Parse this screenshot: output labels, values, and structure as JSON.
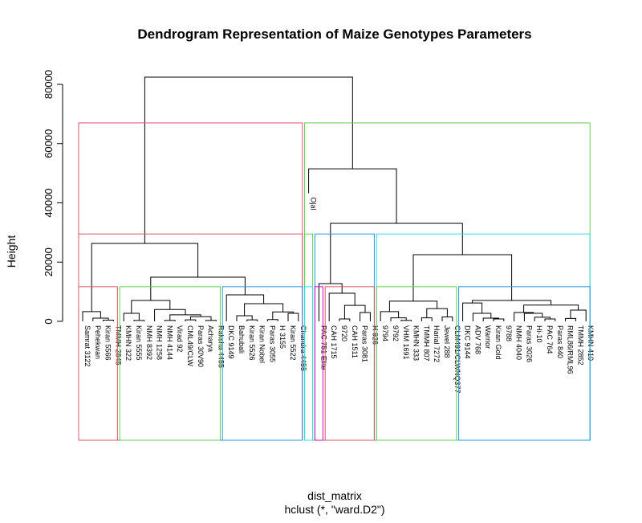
{
  "chart_data": {
    "type": "dendrogram",
    "title": "Dendrogram Representation of Maize Genotypes Parameters",
    "x_label": "dist_matrix",
    "x_sublabel": "hclust (*, \"ward.D2\")",
    "y_label": "Height",
    "ylim": [
      0,
      88000
    ],
    "yticks": [
      0,
      20000,
      40000,
      60000,
      80000
    ],
    "labels": [
      "Samrat 3122",
      "Pehekwan",
      "Kiran 5566",
      "TMMH 2845",
      "KMHN 322",
      "Kiran 5555",
      "NMH 8392",
      "NMH 1258",
      "NMH 4144",
      "Virad 92",
      "CML49/CLW",
      "Paras 30V90",
      "Acharya",
      "Raksha 4455",
      "DKC 9149",
      "Bahubali",
      "Kiran 5526",
      "Kiran Nobel",
      "Paras 3055",
      "H 3155",
      "Kiran 5522",
      "Chandra 4455",
      "Ojal",
      "PAC 751 Elite",
      "CAH 1715",
      "9720",
      "CAH 1511",
      "Paras 3081",
      "H 926",
      "9794",
      "9792",
      "VHM 1691",
      "KMHN 333",
      "TMMH 807",
      "Harial 7272",
      "Jewel 288",
      "CLM491/CLWNQ377",
      "DKC 9144",
      "ADV 768",
      "Warrior",
      "Kiran Gold",
      "9788",
      "NMH 4040",
      "Paras 3026",
      "Hi-10",
      "PAC 764",
      "Paras 840",
      "RML86/RML96",
      "TMMH 2852",
      "KMHN 410"
    ],
    "merges": [
      {
        "pair": [
          -3,
          -4
        ],
        "height": 400
      },
      {
        "pair": [
          -2,
          1
        ],
        "height": 1100
      },
      {
        "pair": [
          -1,
          2
        ],
        "height": 3300
      },
      {
        "pair": [
          -6,
          -7
        ],
        "height": 300
      },
      {
        "pair": [
          -5,
          4
        ],
        "height": 2700
      },
      {
        "pair": [
          -9,
          -10
        ],
        "height": 300
      },
      {
        "pair": [
          -11,
          -12
        ],
        "height": 500
      },
      {
        "pair": [
          -13,
          -14
        ],
        "height": 300
      },
      {
        "pair": [
          7,
          8
        ],
        "height": 1600
      },
      {
        "pair": [
          6,
          9
        ],
        "height": 2200
      },
      {
        "pair": [
          -8,
          10
        ],
        "height": 4000
      },
      {
        "pair": [
          5,
          11
        ],
        "height": 7050
      },
      {
        "pair": [
          -17,
          -18
        ],
        "height": 500
      },
      {
        "pair": [
          -16,
          13
        ],
        "height": 1900
      },
      {
        "pair": [
          -19,
          -20
        ],
        "height": 600
      },
      {
        "pair": [
          -21,
          -22
        ],
        "height": 2700
      },
      {
        "pair": [
          15,
          16
        ],
        "height": 3200
      },
      {
        "pair": [
          14,
          17
        ],
        "height": 5970
      },
      {
        "pair": [
          -15,
          18
        ],
        "height": 8950
      },
      {
        "pair": [
          12,
          19
        ],
        "height": 14900
      },
      {
        "pair": [
          3,
          20
        ],
        "height": 26300
      },
      {
        "pair": [
          -26,
          -27
        ],
        "height": 800
      },
      {
        "pair": [
          -28,
          -29
        ],
        "height": 3000
      },
      {
        "pair": [
          22,
          23
        ],
        "height": 5400
      },
      {
        "pair": [
          -25,
          24
        ],
        "height": 9500
      },
      {
        "pair": [
          -24,
          25
        ],
        "height": 12750
      },
      {
        "pair": [
          -32,
          -33
        ],
        "height": 300
      },
      {
        "pair": [
          -31,
          27
        ],
        "height": 1200
      },
      {
        "pair": [
          -30,
          28
        ],
        "height": 3300
      },
      {
        "pair": [
          -34,
          -35
        ],
        "height": 1200
      },
      {
        "pair": [
          -36,
          -37
        ],
        "height": 1500
      },
      {
        "pair": [
          30,
          31
        ],
        "height": 4300
      },
      {
        "pair": [
          29,
          32
        ],
        "height": 6800
      },
      {
        "pair": [
          -41,
          -42
        ],
        "height": 800
      },
      {
        "pair": [
          -40,
          34
        ],
        "height": 1100
      },
      {
        "pair": [
          -39,
          35
        ],
        "height": 2700
      },
      {
        "pair": [
          -38,
          36
        ],
        "height": 6200
      },
      {
        "pair": [
          -46,
          -47
        ],
        "height": 800
      },
      {
        "pair": [
          -45,
          38
        ],
        "height": 1400
      },
      {
        "pair": [
          -44,
          39
        ],
        "height": 2700
      },
      {
        "pair": [
          -43,
          40
        ],
        "height": 3000
      },
      {
        "pair": [
          -48,
          -49
        ],
        "height": 1000
      },
      {
        "pair": [
          42,
          -50
        ],
        "height": 3800
      },
      {
        "pair": [
          41,
          43
        ],
        "height": 5500
      },
      {
        "pair": [
          37,
          44
        ],
        "height": 7050
      },
      {
        "pair": [
          33,
          45
        ],
        "height": 22500
      },
      {
        "pair": [
          26,
          46
        ],
        "height": 33100
      },
      {
        "pair": [
          -23,
          47
        ],
        "height": 51500
      },
      {
        "pair": [
          21,
          48
        ],
        "height": 82440
      }
    ],
    "rects": [
      {
        "from": 1,
        "to": 22,
        "height": 67000,
        "color": "#DF536B"
      },
      {
        "from": 23,
        "to": 50,
        "height": 67000,
        "color": "#61D04F"
      },
      {
        "from": 1,
        "to": 22,
        "height": 29500,
        "color": "#DF536B"
      },
      {
        "from": 23,
        "to": 23,
        "height": 29500,
        "color": "#61D04F"
      },
      {
        "from": 24,
        "to": 29,
        "height": 29500,
        "color": "#2297E6"
      },
      {
        "from": 30,
        "to": 50,
        "height": 29500,
        "color": "#28E2E5"
      },
      {
        "from": 1,
        "to": 4,
        "height": 11700,
        "color": "#DF536B"
      },
      {
        "from": 5,
        "to": 14,
        "height": 11700,
        "color": "#61D04F"
      },
      {
        "from": 15,
        "to": 22,
        "height": 11700,
        "color": "#2297E6"
      },
      {
        "from": 23,
        "to": 23,
        "height": 11700,
        "color": "#28E2E5"
      },
      {
        "from": 24,
        "to": 24,
        "height": 11700,
        "color": "#CD0BBC"
      },
      {
        "from": 25,
        "to": 29,
        "height": 11700,
        "color": "#DF536B"
      },
      {
        "from": 30,
        "to": 37,
        "height": 11700,
        "color": "#61D04F"
      },
      {
        "from": 38,
        "to": 50,
        "height": 11700,
        "color": "#2297E6"
      }
    ]
  }
}
